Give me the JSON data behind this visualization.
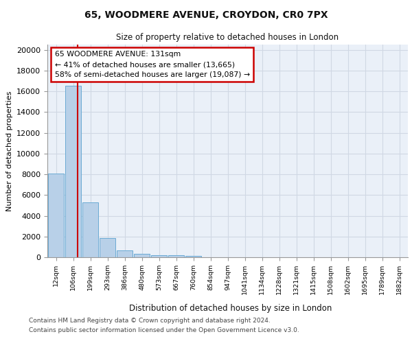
{
  "title1": "65, WOODMERE AVENUE, CROYDON, CR0 7PX",
  "title2": "Size of property relative to detached houses in London",
  "xlabel": "Distribution of detached houses by size in London",
  "ylabel": "Number of detached properties",
  "bar_labels": [
    "12sqm",
    "106sqm",
    "199sqm",
    "293sqm",
    "386sqm",
    "480sqm",
    "573sqm",
    "667sqm",
    "760sqm",
    "854sqm",
    "947sqm",
    "1041sqm",
    "1134sqm",
    "1228sqm",
    "1321sqm",
    "1415sqm",
    "1508sqm",
    "1602sqm",
    "1695sqm",
    "1789sqm",
    "1882sqm"
  ],
  "bar_values": [
    8050,
    16500,
    5300,
    1850,
    650,
    310,
    210,
    200,
    150,
    0,
    0,
    0,
    0,
    0,
    0,
    0,
    0,
    0,
    0,
    0,
    0
  ],
  "bar_color": "#b8d0e8",
  "bar_edge_color": "#6aaad4",
  "grid_color": "#d0d8e4",
  "bg_color": "#eaf0f8",
  "red_line_x": 1.25,
  "annotation_line1": "65 WOODMERE AVENUE: 131sqm",
  "annotation_line2": "← 41% of detached houses are smaller (13,665)",
  "annotation_line3": "58% of semi-detached houses are larger (19,087) →",
  "footnote1": "Contains HM Land Registry data © Crown copyright and database right 2024.",
  "footnote2": "Contains public sector information licensed under the Open Government Licence v3.0.",
  "ylim": [
    0,
    20500
  ],
  "yticks": [
    0,
    2000,
    4000,
    6000,
    8000,
    10000,
    12000,
    14000,
    16000,
    18000,
    20000
  ]
}
